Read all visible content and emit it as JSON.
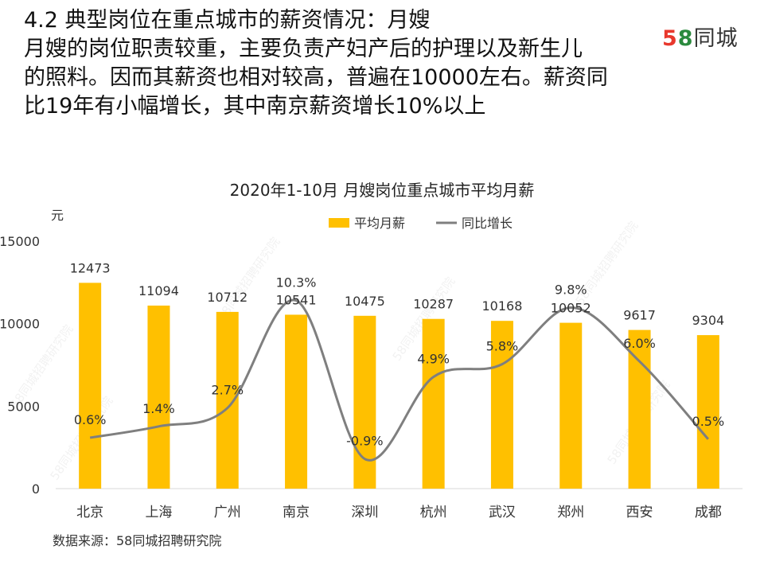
{
  "headline": {
    "line1": "4.2 典型岗位在重点城市的薪资情况：月嫂",
    "line2": "月嫂的岗位职责较重，主要负责产妇产后的护理以及新生儿",
    "line3": "的照料。因而其薪资也相对较高，普遍在10000左右。薪资同",
    "line4": "比19年有小幅增长，其中南京薪资增长10%以上"
  },
  "logo": {
    "digit5": "5",
    "digit8": "8",
    "text": "同城"
  },
  "source": "数据来源：58同城招聘研究院",
  "watermark": "58同城招聘研究院",
  "colors": {
    "bar": "#FFC000",
    "line": "#7F7F7F",
    "axis": "#D9D9D9"
  },
  "chart_data": {
    "type": "bar",
    "title": "2020年1-10月  月嫂岗位重点城市平均月薪",
    "ylabel": "元",
    "ylim": [
      0,
      15000
    ],
    "yticks": [
      0,
      5000,
      10000,
      15000
    ],
    "grid": false,
    "legend_position": "top-center",
    "categories": [
      "北京",
      "上海",
      "广州",
      "南京",
      "深圳",
      "杭州",
      "武汉",
      "郑州",
      "西安",
      "成都"
    ],
    "series": [
      {
        "name": "平均月薪",
        "kind": "bar",
        "values": [
          12473,
          11094,
          10712,
          10541,
          10475,
          10287,
          10168,
          10052,
          9617,
          9304
        ],
        "labels": [
          "12473",
          "11094",
          "10712",
          "10541",
          "10475",
          "10287",
          "10168",
          "10052",
          "9617",
          "9304"
        ]
      },
      {
        "name": "同比增长",
        "kind": "line",
        "smooth": true,
        "secondary_axis": true,
        "values": [
          0.6,
          1.4,
          2.7,
          10.3,
          -0.9,
          4.9,
          5.8,
          9.8,
          6.0,
          0.5
        ],
        "labels": [
          "0.6%",
          "1.4%",
          "2.7%",
          "10.3%",
          "-0.9%",
          "4.9%",
          "5.8%",
          "9.8%",
          "6.0%",
          "0.5%"
        ]
      }
    ]
  }
}
